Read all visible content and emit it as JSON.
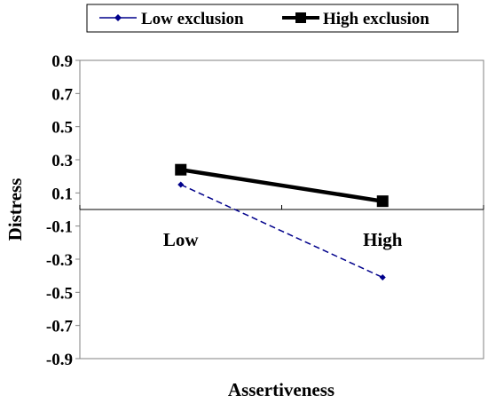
{
  "chart_data": {
    "type": "line",
    "categories": [
      "Low",
      "High"
    ],
    "series": [
      {
        "name": "Low exclusion",
        "values": [
          0.15,
          -0.41
        ],
        "color": "#00008B",
        "line_style": "dashed",
        "marker": "diamond"
      },
      {
        "name": "High exclusion",
        "values": [
          0.24,
          0.05
        ],
        "color": "#000000",
        "line_style": "solid",
        "marker": "square"
      }
    ],
    "title": "",
    "xlabel": "Assertiveness",
    "ylabel": "Distress",
    "ylim": [
      -0.9,
      0.9
    ],
    "yticks": [
      "0.9",
      "0.7",
      "0.5",
      "0.3",
      "0.1",
      "-0.1",
      "-0.3",
      "-0.5",
      "-0.7",
      "-0.9"
    ],
    "grid": false,
    "legend_position": "top"
  }
}
